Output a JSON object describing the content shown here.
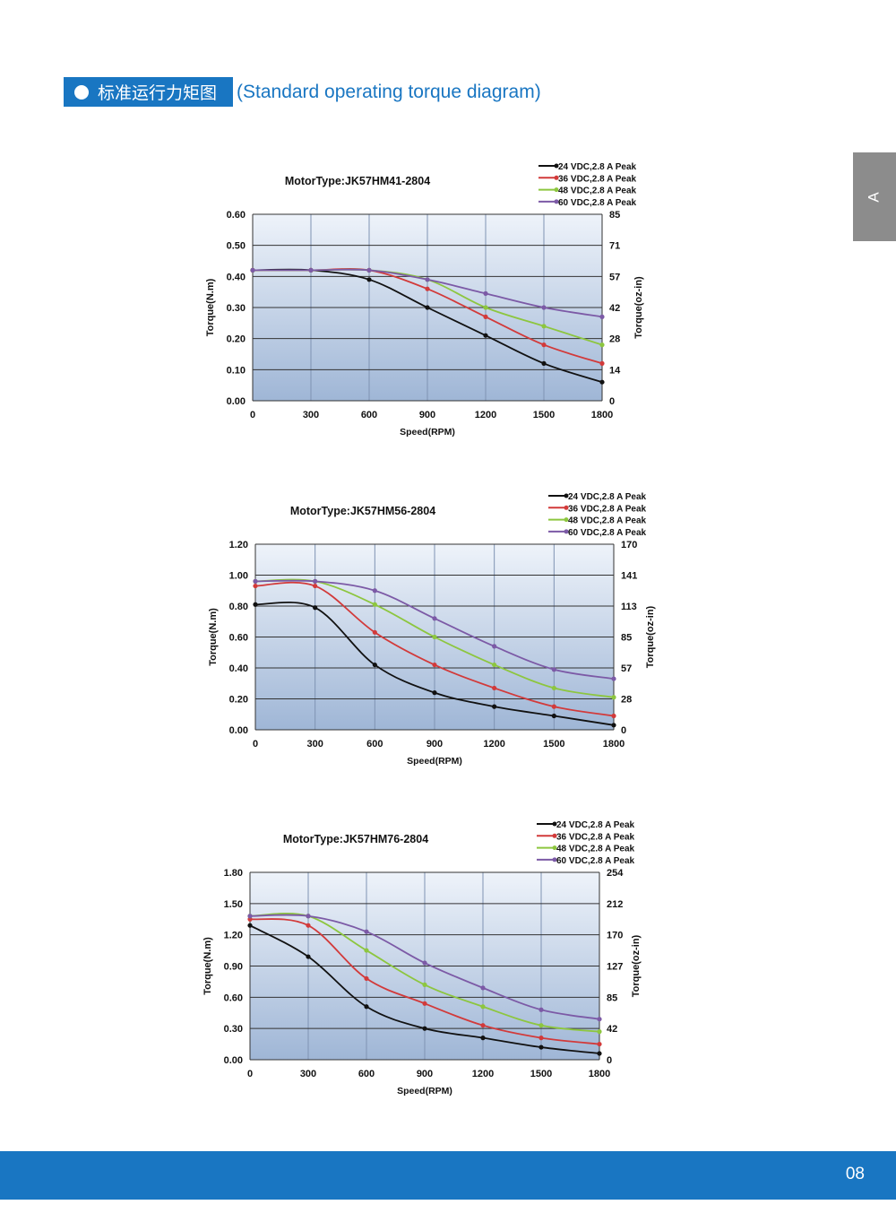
{
  "header": {
    "title_cn": "标准运行力矩图",
    "title_en": "(Standard operating torque diagram)"
  },
  "side_tab": {
    "label": "A"
  },
  "footer": {
    "page_number": "08"
  },
  "colors": {
    "brand": "#1976c2",
    "tab_gray": "#8c8c8c",
    "series": [
      "#111111",
      "#d23a3a",
      "#8dc63f",
      "#7c5aa6"
    ]
  },
  "chart_data": [
    {
      "type": "line",
      "title": "MotorType:JK57HM41-2804",
      "xlabel": "Speed(RPM)",
      "ylabel": "Torque(N.m)",
      "ylabel_right": "Torque(oz-in)",
      "x": [
        0,
        300,
        600,
        900,
        1200,
        1500,
        1800
      ],
      "x_tick_labels": [
        "0",
        "300",
        "600",
        "900",
        "1200",
        "1500",
        "1800"
      ],
      "xlim": [
        0,
        1800
      ],
      "ylim": [
        0,
        0.6
      ],
      "y_tick_labels": [
        "0.00",
        "0.10",
        "0.20",
        "0.30",
        "0.40",
        "0.50",
        "0.60"
      ],
      "y_right_tick_labels": [
        "0",
        "14",
        "28",
        "42",
        "57",
        "71",
        "85"
      ],
      "series": [
        {
          "name": "24 VDC,2.8 A Peak",
          "values": [
            0.42,
            0.42,
            0.39,
            0.3,
            0.21,
            0.12,
            0.06
          ]
        },
        {
          "name": "36 VDC,2.8 A Peak",
          "values": [
            0.42,
            0.42,
            0.42,
            0.36,
            0.27,
            0.18,
            0.12
          ]
        },
        {
          "name": "48 VDC,2.8 A Peak",
          "values": [
            0.42,
            0.42,
            0.42,
            0.39,
            0.3,
            0.24,
            0.18
          ]
        },
        {
          "name": "60 VDC,2.8 A Peak",
          "values": [
            0.42,
            0.42,
            0.42,
            0.39,
            0.345,
            0.3,
            0.27
          ]
        }
      ]
    },
    {
      "type": "line",
      "title": "MotorType:JK57HM56-2804",
      "xlabel": "Speed(RPM)",
      "ylabel": "Torque(N.m)",
      "ylabel_right": "Torque(oz-in)",
      "x": [
        0,
        300,
        600,
        900,
        1200,
        1500,
        1800
      ],
      "x_tick_labels": [
        "0",
        "300",
        "600",
        "900",
        "1200",
        "1500",
        "1800"
      ],
      "xlim": [
        0,
        1800
      ],
      "ylim": [
        0,
        1.2
      ],
      "y_tick_labels": [
        "0.00",
        "0.20",
        "0.40",
        "0.60",
        "0.80",
        "1.00",
        "1.20"
      ],
      "y_right_tick_labels": [
        "0",
        "28",
        "57",
        "85",
        "113",
        "141",
        "170"
      ],
      "series": [
        {
          "name": "24 VDC,2.8 A Peak",
          "values": [
            0.81,
            0.79,
            0.42,
            0.24,
            0.15,
            0.09,
            0.03
          ]
        },
        {
          "name": "36 VDC,2.8 A Peak",
          "values": [
            0.93,
            0.93,
            0.63,
            0.42,
            0.27,
            0.15,
            0.09
          ]
        },
        {
          "name": "48 VDC,2.8 A Peak",
          "values": [
            0.96,
            0.96,
            0.81,
            0.6,
            0.42,
            0.27,
            0.21
          ]
        },
        {
          "name": "60 VDC,2.8 A Peak",
          "values": [
            0.96,
            0.96,
            0.9,
            0.72,
            0.54,
            0.39,
            0.33
          ]
        }
      ]
    },
    {
      "type": "line",
      "title": "MotorType:JK57HM76-2804",
      "xlabel": "Speed(RPM)",
      "ylabel": "Torque(N.m)",
      "ylabel_right": "Torque(oz-in)",
      "x": [
        0,
        300,
        600,
        900,
        1200,
        1500,
        1800
      ],
      "x_tick_labels": [
        "0",
        "300",
        "600",
        "900",
        "1200",
        "1500",
        "1800"
      ],
      "xlim": [
        0,
        1800
      ],
      "ylim": [
        0,
        1.8
      ],
      "y_tick_labels": [
        "0.00",
        "0.30",
        "0.60",
        "0.90",
        "1.20",
        "1.50",
        "1.80"
      ],
      "y_right_tick_labels": [
        "0",
        "42",
        "85",
        "127",
        "170",
        "212",
        "254"
      ],
      "series": [
        {
          "name": "24 VDC,2.8 A Peak",
          "values": [
            1.29,
            0.99,
            0.51,
            0.3,
            0.21,
            0.12,
            0.06
          ]
        },
        {
          "name": "36 VDC,2.8 A Peak",
          "values": [
            1.35,
            1.29,
            0.78,
            0.54,
            0.33,
            0.21,
            0.15
          ]
        },
        {
          "name": "48 VDC,2.8 A Peak",
          "values": [
            1.38,
            1.38,
            1.05,
            0.72,
            0.51,
            0.33,
            0.27
          ]
        },
        {
          "name": "60 VDC,2.8 A Peak",
          "values": [
            1.38,
            1.38,
            1.23,
            0.93,
            0.69,
            0.48,
            0.39
          ]
        }
      ]
    }
  ]
}
